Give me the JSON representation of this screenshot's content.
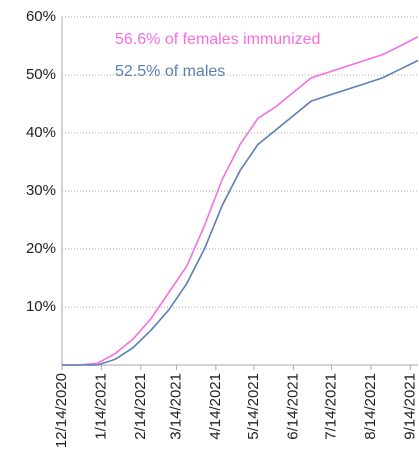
{
  "chart_data": {
    "type": "line",
    "x": [
      "2020-12-14",
      "2020-12-28",
      "2021-01-11",
      "2021-01-25",
      "2021-02-08",
      "2021-02-22",
      "2021-03-08",
      "2021-03-22",
      "2021-04-05",
      "2021-04-19",
      "2021-05-03",
      "2021-05-17",
      "2021-05-31",
      "2021-06-14",
      "2021-06-28",
      "2021-07-12",
      "2021-07-26",
      "2021-08-09",
      "2021-08-23",
      "2021-09-06",
      "2021-09-20"
    ],
    "series": [
      {
        "name": "females",
        "color": "#f76ee0",
        "values": [
          0,
          0,
          0.3,
          2,
          4.5,
          8,
          12.5,
          17,
          24,
          32,
          38,
          42.5,
          44.5,
          47,
          49.5,
          50.5,
          51.5,
          52.5,
          53.5,
          55,
          56.6
        ]
      },
      {
        "name": "males",
        "color": "#5b7fb5",
        "values": [
          0,
          0,
          0,
          1,
          3,
          6,
          9.5,
          14,
          20,
          27.5,
          33.5,
          38,
          40.5,
          43,
          45.5,
          46.5,
          47.5,
          48.5,
          49.5,
          51,
          52.5
        ]
      }
    ],
    "annotations": [
      {
        "text": "56.6% of females immunized",
        "color": "#f76ee0"
      },
      {
        "text": "52.5% of males",
        "color": "#5b7fb5"
      }
    ],
    "xlim": [
      "2020-12-14",
      "2021-09-20"
    ],
    "xticks": [
      {
        "value": "2020-12-14",
        "label": "12/14/2020"
      },
      {
        "value": "2021-01-14",
        "label": "1/14/2021"
      },
      {
        "value": "2021-02-14",
        "label": "2/14/2021"
      },
      {
        "value": "2021-03-14",
        "label": "3/14/2021"
      },
      {
        "value": "2021-04-14",
        "label": "4/14/2021"
      },
      {
        "value": "2021-05-14",
        "label": "5/14/2021"
      },
      {
        "value": "2021-06-14",
        "label": "6/14/2021"
      },
      {
        "value": "2021-07-14",
        "label": "7/14/2021"
      },
      {
        "value": "2021-08-14",
        "label": "8/14/2021"
      },
      {
        "value": "2021-09-14",
        "label": "9/14/2021"
      }
    ],
    "ylim": [
      0,
      60
    ],
    "yticks": [
      {
        "value": 0,
        "label": ""
      },
      {
        "value": 10,
        "label": "10%"
      },
      {
        "value": 20,
        "label": "20%"
      },
      {
        "value": 30,
        "label": "30%"
      },
      {
        "value": 40,
        "label": "40%"
      },
      {
        "value": 50,
        "label": "50%"
      },
      {
        "value": 60,
        "label": "60%"
      }
    ],
    "grid": true
  }
}
